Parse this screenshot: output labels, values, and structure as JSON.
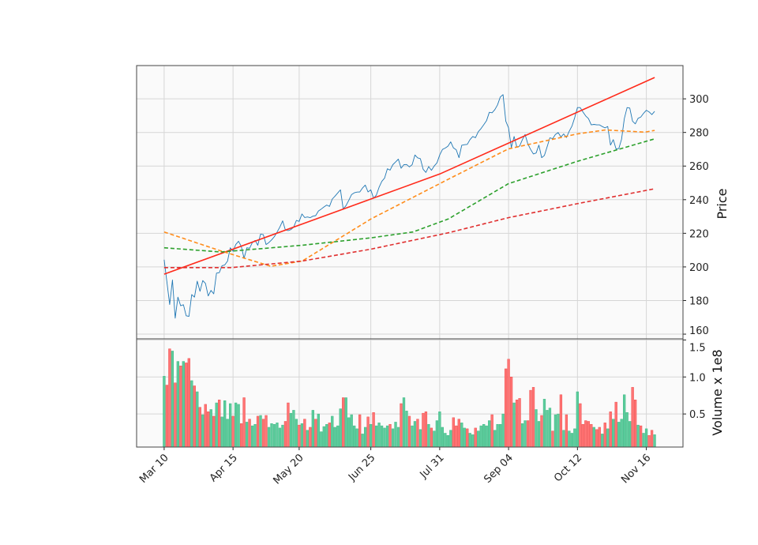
{
  "chart_data": [
    {
      "panel": "price",
      "type": "line",
      "ylabel": "Price",
      "ylim": [
        157.2,
        319.8
      ],
      "yticks": [
        160,
        180,
        200,
        220,
        240,
        260,
        280,
        300
      ],
      "ytick_labels": [
        "160",
        "180",
        "200",
        "220",
        "240",
        "260",
        "280",
        "300"
      ],
      "grid": true,
      "xtick_positions": [
        0,
        25,
        49,
        75,
        100,
        125,
        150,
        175
      ],
      "xtick_labels": [
        "Mar 10",
        "Apr 15",
        "May 20",
        "Jun 25",
        "Jul 31",
        "Sep 04",
        "Oct 12",
        "Nov 16"
      ],
      "xlim": [
        -10,
        188.3
      ],
      "series": [
        {
          "name": "close",
          "style": "solid-thin",
          "color": "#1f77b4",
          "values": [
            204.3,
            191,
            177.6,
            192.2,
            169.5,
            182,
            176.9,
            177.5,
            170.9,
            170.6,
            183.5,
            182,
            191.5,
            185.5,
            191.9,
            190.2,
            182.7,
            186,
            184,
            196.3,
            196.6,
            200.7,
            201.2,
            203.5,
            211.4,
            209.3,
            213.3,
            215.3,
            212.2,
            205.1,
            211.4,
            211.1,
            214.5,
            215.8,
            212.9,
            219.5,
            219.2,
            213.3,
            214.5,
            216.1,
            218,
            220.8,
            223.8,
            227.4,
            222,
            221.6,
            222.2,
            223.6,
            227.7,
            227.1,
            231.5,
            229.4,
            229.7,
            229.3,
            230.2,
            230.5,
            233.3,
            234.4,
            235.7,
            236.8,
            236,
            240.4,
            242.1,
            244,
            245.9,
            234.4,
            236.5,
            239.6,
            243,
            244.1,
            244.5,
            244.6,
            247,
            248.7,
            244.6,
            245.9,
            240.9,
            242.7,
            247.4,
            250.9,
            252.9,
            258.4,
            257.6,
            260.8,
            262.4,
            264.1,
            258.7,
            260.8,
            260.9,
            259.5,
            260.8,
            266.6,
            264.9,
            264.4,
            258.1,
            256.2,
            259.7,
            257.5,
            260,
            261.9,
            266.6,
            269.9,
            270.7,
            271.8,
            274.4,
            270.8,
            269.7,
            265,
            272.4,
            272.7,
            272.9,
            275.7,
            277.6,
            276.9,
            280.4,
            282.3,
            284.6,
            287,
            292,
            291.7,
            293.6,
            296.4,
            301.1,
            302.5,
            286.7,
            282.7,
            271,
            277.6,
            271.3,
            271.9,
            275.7,
            278.8,
            273.2,
            269.9,
            267.2,
            267.8,
            272.5,
            265,
            266.3,
            271.6,
            276.8,
            276.3,
            278.8,
            279.9,
            277.3,
            279.1,
            277,
            280.7,
            283.8,
            288.9,
            294.8,
            294.8,
            292.2,
            289.8,
            288.2,
            284.5,
            284.8,
            284.5,
            284.5,
            283.5,
            282.7,
            283.5,
            272.5,
            275.7,
            270.2,
            270.4,
            276,
            288.2,
            294.8,
            294.5,
            286.7,
            285.1,
            288.4,
            289.2,
            291.4,
            293.2,
            292.2,
            290.6,
            292.6
          ]
        },
        {
          "name": "trend",
          "style": "solid",
          "color": "#ff2a1a",
          "x": [
            0,
            50,
            100,
            178
          ],
          "y": [
            195.7,
            225.5,
            255.3,
            312.7
          ]
        },
        {
          "name": "ma-orange",
          "style": "dashed",
          "color": "#ff8c1a",
          "x": [
            0,
            20.6,
            38.7,
            50.1,
            75.1,
            103.2,
            124.9,
            149.9,
            160.2,
            174.5,
            178
          ],
          "y": [
            220.8,
            209.5,
            200.4,
            203.5,
            228.6,
            252.2,
            270.2,
            279.1,
            281.5,
            280.2,
            281.2
          ]
        },
        {
          "name": "ma-green",
          "style": "dashed",
          "color": "#2ca02c",
          "x": [
            0,
            20.6,
            50.1,
            75.1,
            90.3,
            103.2,
            124.9,
            149.9,
            178
          ],
          "y": [
            211.4,
            208.9,
            212.9,
            217.3,
            220.8,
            228.6,
            249.5,
            262.8,
            276.2
          ]
        },
        {
          "name": "ma-red",
          "style": "dashed",
          "color": "#e03030",
          "x": [
            0,
            24.4,
            50.1,
            75.1,
            103.2,
            124.9,
            149.9,
            178
          ],
          "y": [
            199.6,
            199.6,
            203.5,
            210.6,
            220.3,
            229.3,
            237.6,
            246.5
          ]
        }
      ]
    },
    {
      "panel": "volume",
      "type": "bar",
      "ylabel": "Volume x 1e8",
      "ylim": [
        0.053,
        1.515
      ],
      "yticks": [
        0.5,
        1.0,
        1.5
      ],
      "ytick_labels": [
        "0.5",
        "1.0",
        "1.5"
      ],
      "grid": true,
      "up_color": "#5ccc9c",
      "down_color": "#ff7474",
      "values": [
        1.01,
        0.89,
        1.38,
        1.35,
        0.92,
        1.21,
        1.15,
        1.21,
        1.19,
        1.25,
        0.95,
        0.88,
        0.8,
        0.59,
        0.49,
        0.63,
        0.53,
        0.56,
        0.47,
        0.65,
        0.69,
        0.46,
        0.68,
        0.43,
        0.64,
        0.47,
        0.65,
        0.63,
        0.37,
        0.72,
        0.39,
        0.43,
        0.34,
        0.36,
        0.47,
        0.48,
        0.43,
        0.48,
        0.32,
        0.37,
        0.36,
        0.38,
        0.31,
        0.35,
        0.4,
        0.65,
        0.51,
        0.55,
        0.43,
        0.35,
        0.37,
        0.43,
        0.28,
        0.32,
        0.55,
        0.43,
        0.5,
        0.26,
        0.33,
        0.36,
        0.38,
        0.47,
        0.32,
        0.34,
        0.57,
        0.72,
        0.72,
        0.45,
        0.49,
        0.34,
        0.3,
        0.49,
        0.23,
        0.32,
        0.46,
        0.36,
        0.52,
        0.34,
        0.38,
        0.34,
        0.31,
        0.34,
        0.36,
        0.3,
        0.39,
        0.32,
        0.64,
        0.72,
        0.54,
        0.47,
        0.34,
        0.4,
        0.43,
        0.29,
        0.51,
        0.53,
        0.36,
        0.31,
        0.27,
        0.41,
        0.53,
        0.32,
        0.24,
        0.21,
        0.28,
        0.45,
        0.34,
        0.43,
        0.38,
        0.31,
        0.3,
        0.24,
        0.22,
        0.31,
        0.27,
        0.34,
        0.36,
        0.34,
        0.41,
        0.49,
        0.28,
        0.36,
        0.36,
        0.5,
        1.11,
        1.24,
        1.0,
        0.65,
        0.69,
        0.71,
        0.37,
        0.41,
        0.41,
        0.82,
        0.86,
        0.56,
        0.4,
        0.48,
        0.7,
        0.55,
        0.58,
        0.27,
        0.49,
        0.5,
        0.76,
        0.28,
        0.49,
        0.27,
        0.24,
        0.3,
        0.8,
        0.64,
        0.36,
        0.41,
        0.4,
        0.36,
        0.32,
        0.29,
        0.32,
        0.23,
        0.38,
        0.3,
        0.53,
        0.43,
        0.66,
        0.39,
        0.43,
        0.76,
        0.52,
        0.4,
        0.86,
        0.69,
        0.35,
        0.34,
        0.24,
        0.3,
        0.21,
        0.28,
        0.22
      ],
      "direction": [
        "u",
        "d",
        "d",
        "u",
        "d",
        "u",
        "d",
        "u",
        "d",
        "d",
        "u",
        "d",
        "u",
        "d",
        "u",
        "d",
        "d",
        "u",
        "d",
        "u",
        "d",
        "u",
        "u",
        "u",
        "u",
        "d",
        "u",
        "u",
        "d",
        "d",
        "u",
        "d",
        "u",
        "u",
        "d",
        "u",
        "d",
        "d",
        "u",
        "u",
        "u",
        "u",
        "u",
        "u",
        "d",
        "d",
        "u",
        "u",
        "u",
        "d",
        "u",
        "d",
        "u",
        "d",
        "u",
        "d",
        "u",
        "u",
        "u",
        "u",
        "d",
        "u",
        "u",
        "u",
        "u",
        "d",
        "u",
        "u",
        "u",
        "u",
        "u",
        "d",
        "u",
        "u",
        "d",
        "u",
        "d",
        "u",
        "u",
        "u",
        "u",
        "u",
        "d",
        "u",
        "u",
        "u",
        "d",
        "u",
        "u",
        "d",
        "u",
        "u",
        "d",
        "u",
        "d",
        "d",
        "u",
        "d",
        "u",
        "u",
        "u",
        "u",
        "u",
        "u",
        "u",
        "d",
        "d",
        "d",
        "u",
        "u",
        "d",
        "u",
        "u",
        "d",
        "u",
        "u",
        "u",
        "u",
        "u",
        "d",
        "u",
        "u",
        "u",
        "u",
        "d",
        "d",
        "d",
        "u",
        "d",
        "d",
        "u",
        "u",
        "d",
        "d",
        "d",
        "u",
        "u",
        "d",
        "u",
        "u",
        "u",
        "d",
        "u",
        "u",
        "d",
        "u",
        "d",
        "u",
        "u",
        "u",
        "u",
        "d",
        "d",
        "d",
        "d",
        "d",
        "u",
        "d",
        "d",
        "u",
        "d",
        "u",
        "d",
        "u",
        "d",
        "u",
        "u",
        "u",
        "u",
        "u",
        "d",
        "d",
        "u",
        "d",
        "u",
        "u",
        "d",
        "d",
        "u"
      ]
    }
  ]
}
